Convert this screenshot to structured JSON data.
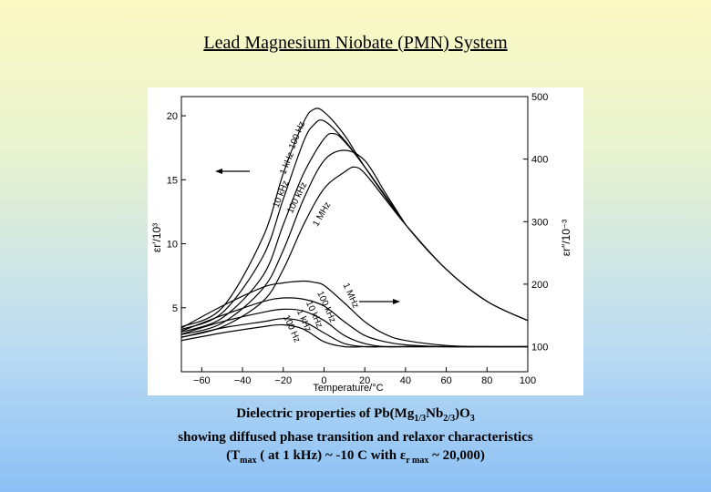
{
  "page": {
    "title": "Lead Magnesium Niobate (PMN) System",
    "caption": {
      "line1_prefix": "Dielectric properties of Pb(Mg",
      "line1_sub1": "1/3",
      "line1_mid": "Nb",
      "line1_sub2": "2/3",
      "line1_suffix": ")O",
      "line1_sub3": "3",
      "line2": "showing diffused phase transition and relaxor characteristics",
      "line3_prefix": "(T",
      "line3_sub1": "max",
      "line3_mid": " ( at 1 kHz) ~ -10 C with ",
      "line3_eps": "ε",
      "line3_sub2": "r max",
      "line3_suffix": " ~ 20,000)"
    }
  },
  "chart_data": {
    "type": "line",
    "xlabel": "Temperature/°C",
    "ylabel_left": "εr′/10³",
    "ylabel_right": "εr″/10⁻³",
    "xlim": [
      -70,
      100
    ],
    "ylim_left": [
      0,
      21.5
    ],
    "ylim_right": [
      60,
      500
    ],
    "x_ticks": [
      -60,
      -40,
      -20,
      0,
      20,
      40,
      60,
      80,
      100
    ],
    "y_left_ticks": [
      5,
      10,
      15,
      20
    ],
    "y_right_ticks": [
      100,
      200,
      300,
      400,
      500
    ],
    "series_real": [
      {
        "name": "100 Hz",
        "x": [
          -70,
          -50,
          -30,
          -20,
          -10,
          -5,
          0,
          10,
          20,
          40,
          60,
          80,
          100
        ],
        "values": [
          3.5,
          5.0,
          10.5,
          15.5,
          19.5,
          20.5,
          20.3,
          18.5,
          16.0,
          11.5,
          8.0,
          5.5,
          4.0
        ]
      },
      {
        "name": "1 kHz",
        "x": [
          -70,
          -50,
          -30,
          -20,
          -10,
          -5,
          0,
          10,
          20,
          40
        ],
        "values": [
          3.3,
          4.6,
          9.0,
          13.5,
          18.0,
          19.3,
          19.6,
          18.1,
          16.0,
          11.5
        ]
      },
      {
        "name": "10 kHz",
        "x": [
          -70,
          -50,
          -30,
          -20,
          -10,
          0,
          5,
          10,
          20,
          40
        ],
        "values": [
          3.1,
          4.2,
          7.5,
          11.5,
          15.5,
          18.2,
          18.6,
          18.0,
          16.0,
          11.5
        ]
      },
      {
        "name": "100 kHz",
        "x": [
          -70,
          -50,
          -30,
          -20,
          -10,
          0,
          10,
          20,
          30,
          40
        ],
        "values": [
          2.9,
          3.8,
          6.5,
          9.5,
          13.5,
          16.5,
          17.3,
          16.5,
          14.0,
          11.5
        ]
      },
      {
        "name": "1 MHz",
        "x": [
          -70,
          -50,
          -30,
          -20,
          -10,
          0,
          10,
          15,
          20,
          30,
          40,
          60,
          80,
          100
        ],
        "values": [
          2.7,
          3.5,
          5.5,
          8.0,
          11.5,
          14.3,
          15.6,
          16.0,
          15.5,
          13.5,
          11.5,
          8.0,
          5.5,
          4.0
        ]
      }
    ],
    "series_imag": [
      {
        "name": "1 MHz",
        "x": [
          -70,
          -50,
          -30,
          -20,
          -10,
          -5,
          0,
          10,
          20,
          30,
          40,
          60,
          80,
          100
        ],
        "values": [
          130,
          165,
          195,
          202,
          205,
          203,
          198,
          170,
          140,
          120,
          110,
          102,
          100,
          100
        ]
      },
      {
        "name": "100 kHz",
        "x": [
          -70,
          -50,
          -30,
          -20,
          -10,
          0,
          10,
          20,
          30,
          40,
          60,
          80,
          100
        ],
        "values": [
          125,
          150,
          172,
          178,
          176,
          165,
          140,
          118,
          108,
          103,
          100,
          100,
          100
        ]
      },
      {
        "name": "10 kHz",
        "x": [
          -70,
          -50,
          -30,
          -20,
          -10,
          0,
          10,
          20,
          30,
          40,
          60,
          80,
          100
        ],
        "values": [
          120,
          140,
          155,
          160,
          157,
          142,
          118,
          105,
          100,
          100,
          100,
          100,
          100
        ]
      },
      {
        "name": "1 kHz",
        "x": [
          -70,
          -50,
          -30,
          -20,
          -10,
          0,
          10,
          20,
          30,
          40,
          60,
          80,
          100
        ],
        "values": [
          115,
          130,
          140,
          145,
          140,
          122,
          105,
          100,
          100,
          100,
          100,
          100,
          100
        ]
      },
      {
        "name": "100 Hz",
        "x": [
          -70,
          -50,
          -30,
          -20,
          -10,
          0,
          10,
          20,
          30,
          40,
          60,
          80,
          100
        ],
        "values": [
          110,
          122,
          132,
          135,
          128,
          108,
          100,
          100,
          100,
          100,
          100,
          100,
          100
        ]
      }
    ],
    "annotations": {
      "arrow_left": "points to left axis (εr′ curves)",
      "arrow_right": "points to right axis (εr″ curves)"
    }
  }
}
